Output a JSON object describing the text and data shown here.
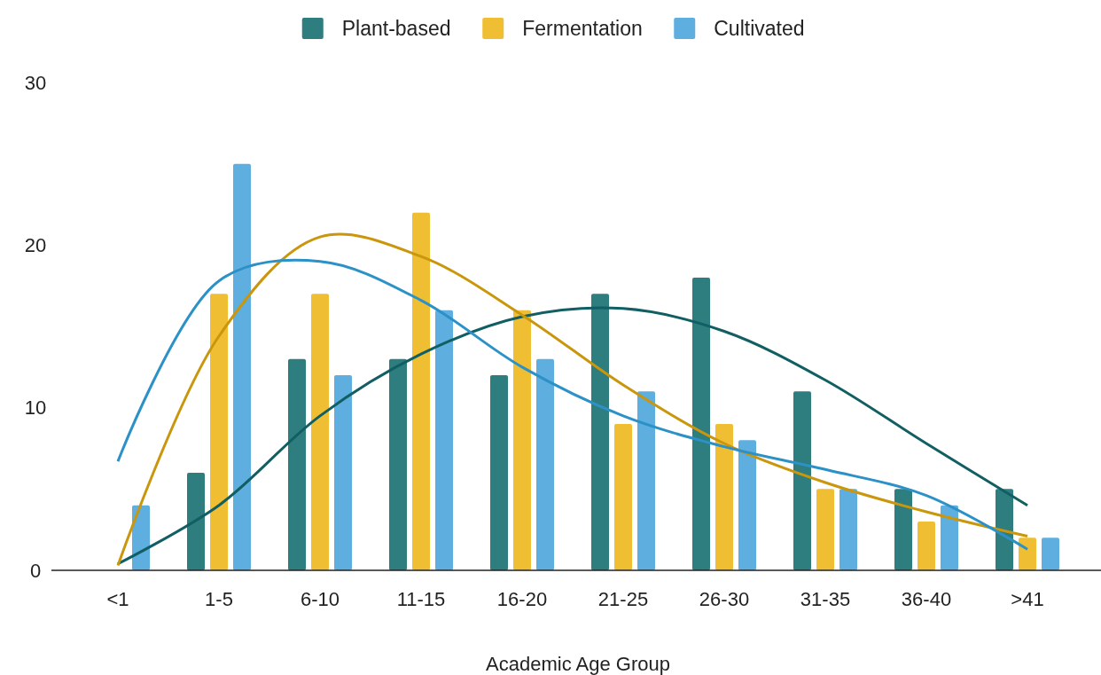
{
  "chart_data": {
    "type": "bar",
    "xlabel": "Academic Age Group",
    "categories": [
      "<1",
      "1-5",
      "6-10",
      "11-15",
      "16-20",
      "21-25",
      "26-30",
      "31-35",
      "36-40",
      ">41"
    ],
    "series": [
      {
        "name": "Plant-based",
        "color": "#2e7d7f",
        "values": [
          0,
          6,
          13,
          13,
          12,
          17,
          18,
          11,
          5,
          5
        ]
      },
      {
        "name": "Fermentation",
        "color": "#f0be32",
        "values": [
          0,
          17,
          17,
          22,
          16,
          9,
          9,
          5,
          3,
          2
        ]
      },
      {
        "name": "Cultivated",
        "color": "#5eaee0",
        "values": [
          4,
          25,
          12,
          16,
          13,
          11,
          8,
          5,
          4,
          2
        ]
      },
      {
        "type": "line",
        "color": "#115e63",
        "values": [
          0.4,
          4.0,
          9.5,
          13.3,
          15.6,
          16.1,
          14.7,
          11.7,
          7.8,
          4.0
        ]
      },
      {
        "type": "line",
        "color": "#c9960c",
        "values": [
          0.3,
          14.4,
          20.5,
          19.3,
          15.7,
          11.4,
          7.8,
          5.4,
          3.6,
          2.1
        ]
      },
      {
        "type": "line",
        "color": "#2b91c7",
        "values": [
          6.7,
          17.8,
          19.0,
          16.6,
          12.5,
          9.5,
          7.6,
          6.2,
          4.6,
          1.3
        ]
      }
    ],
    "ylim": [
      0,
      30
    ],
    "yticks": [
      0,
      10,
      20,
      30
    ],
    "grid": false,
    "legend": "top"
  }
}
